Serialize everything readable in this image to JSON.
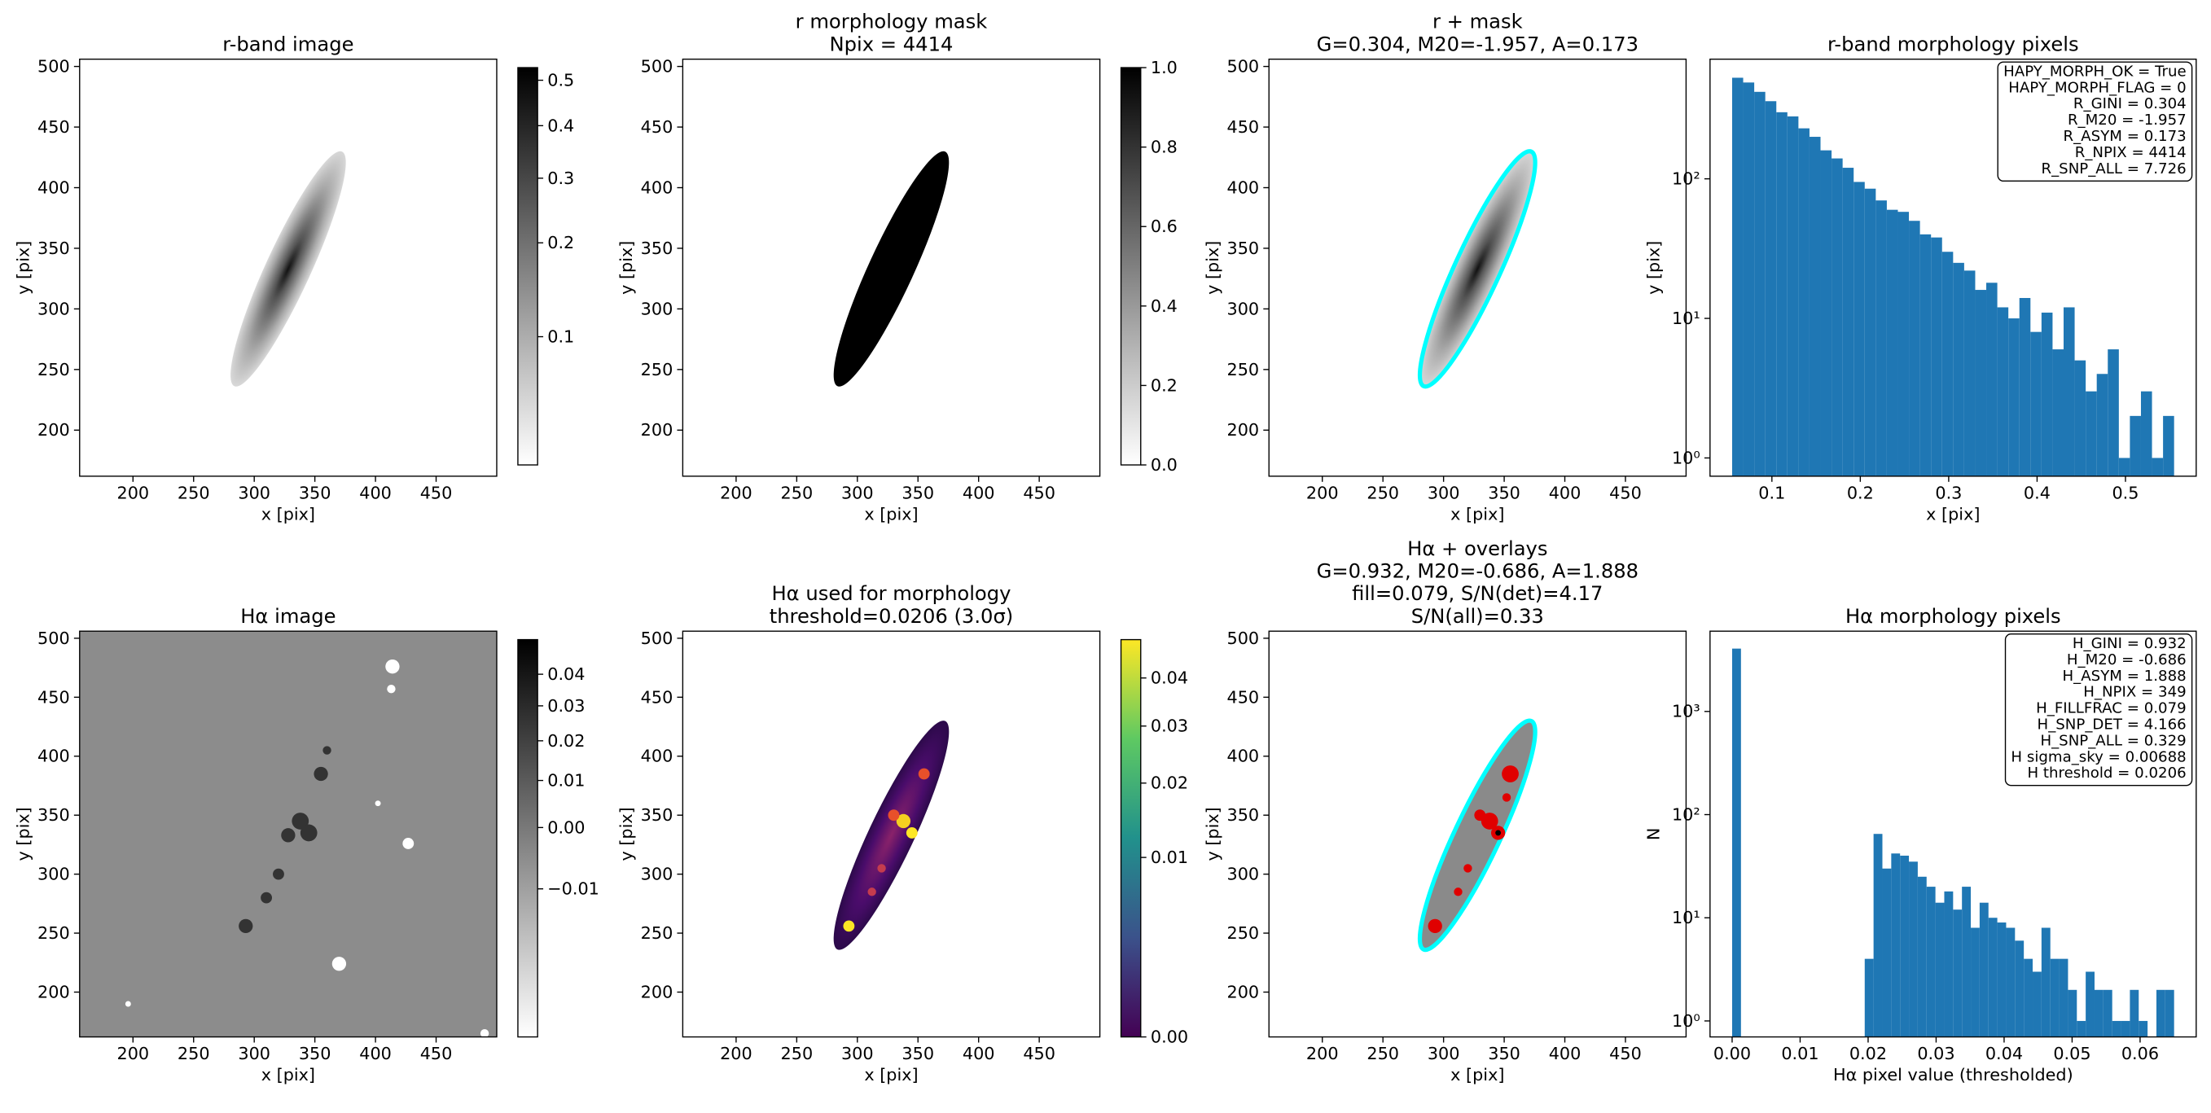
{
  "chart_data": [
    {
      "type": "image",
      "title": [
        "r-band image"
      ],
      "xlabel": "x [pix]",
      "ylabel": "y [pix]",
      "xlim": [
        156,
        500
      ],
      "ylim": [
        162,
        506
      ],
      "xticks": [
        200,
        250,
        300,
        350,
        400,
        450
      ],
      "yticks": [
        200,
        250,
        300,
        350,
        400,
        450,
        500
      ],
      "colorbar": {
        "cmap": "gray_r",
        "scale": "sqrt",
        "clim": [
          0.05,
          0.53
        ],
        "ticks": [
          0.1,
          0.2,
          0.3,
          0.4,
          0.5
        ]
      }
    },
    {
      "type": "image",
      "title": [
        "r morphology mask",
        "Npix = 4414"
      ],
      "xlabel": "x [pix]",
      "ylabel": "y [pix]",
      "xlim": [
        156,
        500
      ],
      "ylim": [
        162,
        506
      ],
      "xticks": [
        200,
        250,
        300,
        350,
        400,
        450
      ],
      "yticks": [
        200,
        250,
        300,
        350,
        400,
        450,
        500
      ],
      "colorbar": {
        "cmap": "gray_r",
        "scale": "linear",
        "clim": [
          0,
          1
        ],
        "ticks": [
          {
            "value": 0,
            "label": "0.0"
          },
          0.2,
          0.4,
          0.6,
          0.8,
          {
            "value": 1,
            "label": "1.0"
          }
        ]
      }
    },
    {
      "type": "image",
      "title": [
        "r + mask",
        "G=0.304, M20=-1.957, A=0.173"
      ],
      "xlabel": "x [pix]",
      "ylabel": "y [pix]",
      "xlim": [
        156,
        500
      ],
      "ylim": [
        162,
        506
      ],
      "xticks": [
        200,
        250,
        300,
        350,
        400,
        450
      ],
      "yticks": [
        200,
        250,
        300,
        350,
        400,
        450,
        500
      ]
    },
    {
      "type": "histogram",
      "title": [
        "r-band morphology pixels"
      ],
      "xlabel": "x [pix]",
      "ylabel": "y [pix]",
      "color": "#1f77b4",
      "yscale": "log",
      "xlim": [
        0.03,
        0.58
      ],
      "ylim": [
        0.74,
        720
      ],
      "xticks": [
        0.1,
        0.2,
        0.3,
        0.4,
        0.5
      ],
      "yticks": [
        {
          "value": 1,
          "label": "10⁰"
        },
        {
          "value": 10,
          "label": "10¹"
        },
        {
          "value": 100,
          "label": "10²"
        }
      ],
      "bins": [
        0.055,
        0.0675,
        0.08,
        0.0925,
        0.105,
        0.1175,
        0.13,
        0.1425,
        0.155,
        0.1675,
        0.18,
        0.1925,
        0.205,
        0.2175,
        0.23,
        0.2425,
        0.255,
        0.2675,
        0.28,
        0.2925,
        0.305,
        0.3175,
        0.33,
        0.3425,
        0.355,
        0.3675,
        0.38,
        0.3925,
        0.405,
        0.4175,
        0.43,
        0.4425,
        0.455,
        0.4675,
        0.48,
        0.4925,
        0.505,
        0.5175,
        0.53,
        0.5425,
        0.555
      ],
      "counts": [
        530,
        490,
        420,
        360,
        300,
        280,
        230,
        200,
        160,
        140,
        120,
        95,
        85,
        70,
        60,
        58,
        50,
        40,
        38,
        30,
        25,
        22,
        16,
        18,
        12,
        10,
        14,
        8,
        11,
        6,
        12,
        5,
        3,
        4,
        6,
        1,
        2,
        3,
        1,
        2
      ],
      "annotation": [
        "HAPY_MORPH_OK = True",
        "HAPY_MORPH_FLAG = 0",
        "R_GINI = 0.304",
        "R_M20 = -1.957",
        "R_ASYM = 0.173",
        "R_NPIX = 4414",
        "R_SNP_ALL = 7.726"
      ]
    },
    {
      "type": "image",
      "title": [
        "Hα image"
      ],
      "xlabel": "x [pix]",
      "ylabel": "y [pix]",
      "xlim": [
        156,
        500
      ],
      "ylim": [
        162,
        506
      ],
      "xticks": [
        200,
        250,
        300,
        350,
        400,
        450
      ],
      "yticks": [
        200,
        250,
        300,
        350,
        400,
        450,
        500
      ],
      "colorbar": {
        "cmap": "gray_r",
        "scale": "sqrt",
        "clim": [
          -0.02,
          0.052
        ],
        "ticks": [
          {
            "value": -0.01,
            "label": "−0.01"
          },
          {
            "value": 0,
            "label": "0.00"
          },
          0.01,
          0.02,
          0.03,
          0.04
        ]
      }
    },
    {
      "type": "image",
      "title": [
        "Hα used for morphology",
        "threshold=0.0206 (3.0σ)"
      ],
      "xlabel": "x [pix]",
      "ylabel": "y [pix]",
      "xlim": [
        156,
        500
      ],
      "ylim": [
        162,
        506
      ],
      "xticks": [
        200,
        250,
        300,
        350,
        400,
        450
      ],
      "yticks": [
        200,
        250,
        300,
        350,
        400,
        450,
        500
      ],
      "colorbar": {
        "cmap": "viridis",
        "scale": "sqrt",
        "clim": [
          0,
          0.049
        ],
        "ticks": [
          {
            "value": 0,
            "label": "0.00"
          },
          0.01,
          0.02,
          0.03,
          0.04
        ]
      }
    },
    {
      "type": "image",
      "title": [
        "Hα + overlays",
        "G=0.932, M20=-0.686, A=1.888",
        "fill=0.079, S/N(det)=4.17",
        "S/N(all)=0.33"
      ],
      "xlabel": "x [pix]",
      "ylabel": "y [pix]",
      "xlim": [
        156,
        500
      ],
      "ylim": [
        162,
        506
      ],
      "xticks": [
        200,
        250,
        300,
        350,
        400,
        450
      ],
      "yticks": [
        200,
        250,
        300,
        350,
        400,
        450,
        500
      ]
    },
    {
      "type": "histogram",
      "title": [
        "Hα morphology pixels"
      ],
      "xlabel": "Hα pixel value (thresholded)",
      "ylabel": "N",
      "color": "#1f77b4",
      "yscale": "log",
      "xlim": [
        -0.00325,
        0.06825
      ],
      "ylim": [
        0.7,
        6000
      ],
      "xticks": [
        {
          "value": 0,
          "label": "0.00"
        },
        0.01,
        0.02,
        0.03,
        0.04,
        0.05,
        0.06
      ],
      "yticks": [
        {
          "value": 1,
          "label": "10⁰"
        },
        {
          "value": 10,
          "label": "10¹"
        },
        {
          "value": 100,
          "label": "10²"
        },
        {
          "value": 1000,
          "label": "10³"
        }
      ],
      "bins": [
        0,
        0.0013,
        0.0026,
        0.0039,
        0.0052,
        0.0065,
        0.0078,
        0.0091,
        0.0104,
        0.0117,
        0.013,
        0.0143,
        0.0156,
        0.0169,
        0.0182,
        0.0195,
        0.0208,
        0.0221,
        0.0234,
        0.0247,
        0.026,
        0.0273,
        0.0286,
        0.0299,
        0.0312,
        0.0325,
        0.0338,
        0.0351,
        0.0364,
        0.0377,
        0.039,
        0.0403,
        0.0416,
        0.0429,
        0.0442,
        0.0455,
        0.0468,
        0.0481,
        0.0494,
        0.0507,
        0.052,
        0.0533,
        0.0546,
        0.0559,
        0.0572,
        0.0585,
        0.0598,
        0.0611,
        0.0624,
        0.0637,
        0.065
      ],
      "counts": [
        4065,
        0,
        0,
        0,
        0,
        0,
        0,
        0,
        0,
        0,
        0,
        0,
        0,
        0,
        0,
        4,
        65,
        30,
        42,
        40,
        35,
        25,
        20,
        14,
        18,
        12,
        20,
        8,
        14,
        10,
        9,
        8,
        6,
        4,
        3,
        8,
        4,
        4,
        2,
        1,
        3,
        2,
        2,
        1,
        1,
        2,
        1,
        0,
        2,
        2
      ],
      "annotation": [
        "H_GINI = 0.932",
        "H_M20 = -0.686",
        "H_ASYM = 1.888",
        "H_NPIX = 349",
        "H_FILLFRAC = 0.079",
        "H_SNP_DET = 4.166",
        "H_SNP_ALL = 0.329",
        "H sigma_sky = 0.00688",
        "H threshold = 0.0206"
      ]
    }
  ]
}
